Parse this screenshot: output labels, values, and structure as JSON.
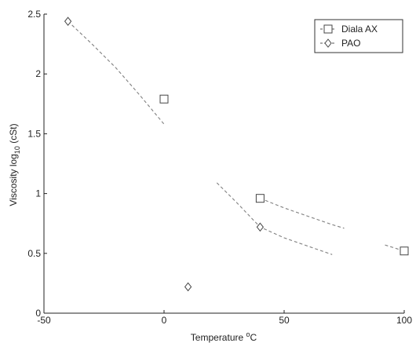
{
  "chart_data": {
    "type": "line",
    "xlabel": "Temperature °C",
    "ylabel": "Viscosity log10 (cSt)",
    "ylabel_parts": {
      "main": "Viscosity log",
      "sub": "10",
      "tail": " (cSt)"
    },
    "xlabel_parts": {
      "main": "Temperature ",
      "sup": "o",
      "tail": "C"
    },
    "xlim": [
      -50,
      100
    ],
    "ylim": [
      0,
      2.5
    ],
    "xticks": [
      -50,
      0,
      50,
      100
    ],
    "xtick_labels": [
      "-50",
      "0",
      "50",
      "100"
    ],
    "yticks": [
      0,
      0.5,
      1,
      1.5,
      2,
      2.5
    ],
    "ytick_labels": [
      "0",
      "0.5",
      "1",
      "1.5",
      "2",
      "2.5"
    ],
    "grid": false,
    "legend_position": "top-right",
    "series": [
      {
        "name": "Diala AX",
        "marker": "square",
        "color": "#555555",
        "points": [
          {
            "x": 0,
            "y": 1.79
          },
          {
            "x": 40,
            "y": 0.96
          },
          {
            "x": 100,
            "y": 0.52
          }
        ],
        "curve": [
          {
            "x": 40,
            "y": 0.96
          },
          {
            "x": 50,
            "y": 0.88
          },
          {
            "x": 60,
            "y": 0.81
          },
          {
            "x": 70,
            "y": 0.74
          },
          {
            "x": 75,
            "y": 0.71
          }
        ],
        "curve2": [
          {
            "x": 92,
            "y": 0.57
          },
          {
            "x": 100,
            "y": 0.52
          }
        ]
      },
      {
        "name": "PAO",
        "marker": "diamond",
        "color": "#555555",
        "points": [
          {
            "x": -40,
            "y": 2.44
          },
          {
            "x": 40,
            "y": 0.72
          },
          {
            "x": 10,
            "y": 0.22
          }
        ],
        "curve": [
          {
            "x": -40,
            "y": 2.44
          },
          {
            "x": -30,
            "y": 2.25
          },
          {
            "x": -20,
            "y": 2.05
          },
          {
            "x": -10,
            "y": 1.82
          },
          {
            "x": 0,
            "y": 1.58
          }
        ],
        "curve2": [
          {
            "x": 22,
            "y": 1.09
          },
          {
            "x": 30,
            "y": 0.93
          },
          {
            "x": 40,
            "y": 0.72
          },
          {
            "x": 50,
            "y": 0.63
          },
          {
            "x": 60,
            "y": 0.56
          },
          {
            "x": 70,
            "y": 0.49
          }
        ]
      }
    ]
  }
}
